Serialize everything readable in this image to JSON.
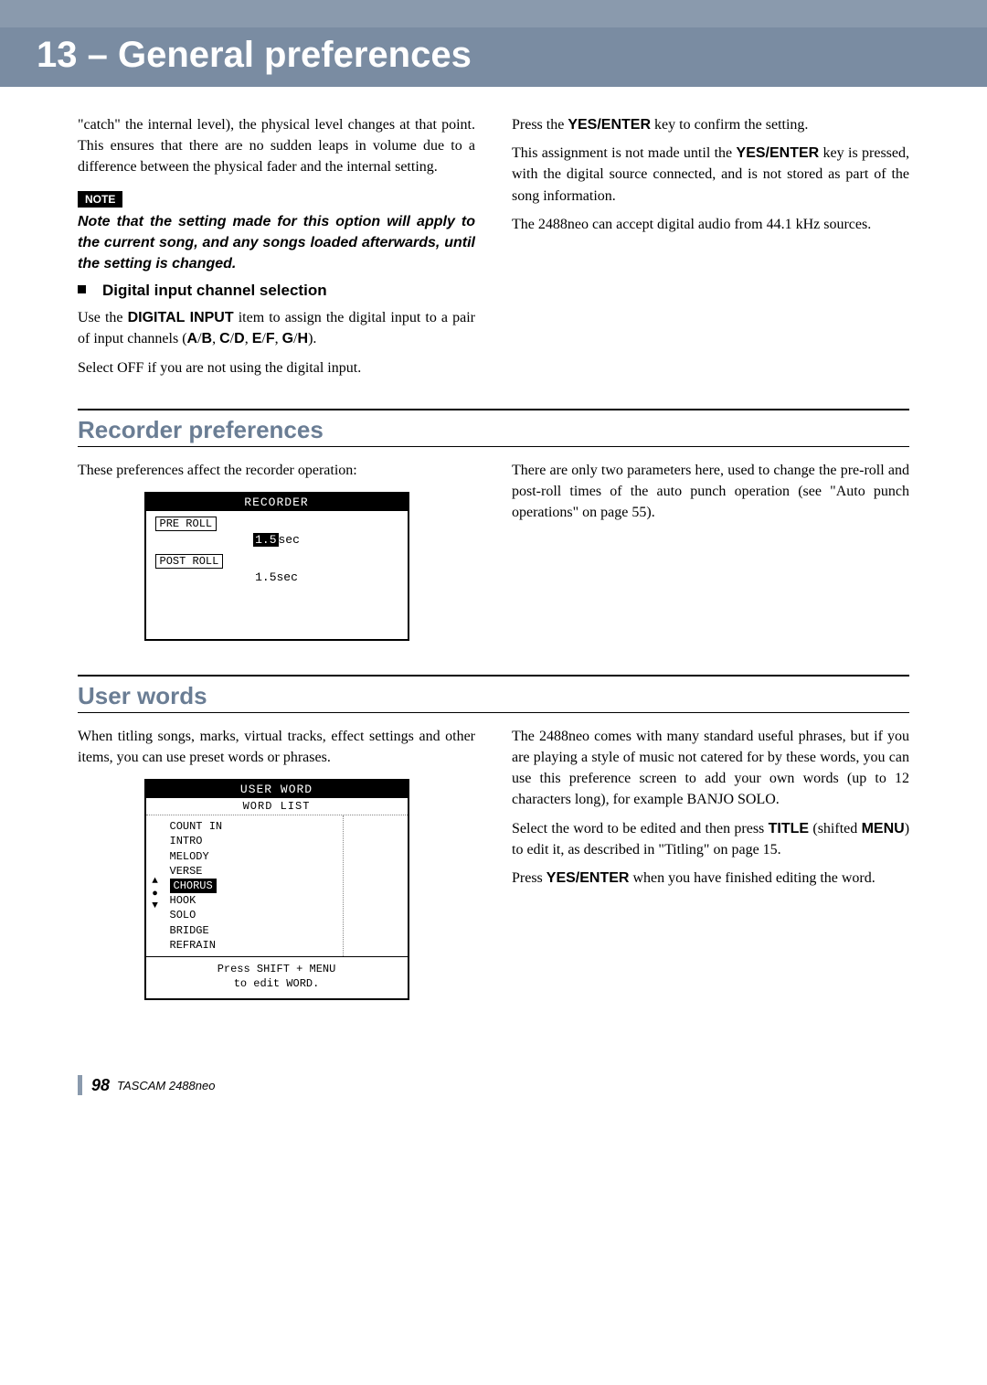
{
  "header": {
    "chapter": "13 – General preferences"
  },
  "intro": {
    "left_p1": "\"catch\" the internal level), the physical level changes at that point. This ensures that there are no sudden leaps in volume due to a difference between the physical fader and the internal setting.",
    "note_label": "NOTE",
    "note_text": "Note that the setting made for this option will apply to the current song, and any songs loaded afterwards, until the setting is changed.",
    "sub_heading": "Digital input channel selection",
    "left_p2a": "Use the ",
    "left_p2_bold1": "DIGITAL INPUT",
    "left_p2b": " item to assign the digital input to a pair of input channels (",
    "left_p2_bold2": "A",
    "left_p2c": "/",
    "left_p2_bold3": "B",
    "left_p2d": ", ",
    "left_p2_bold4": "C",
    "left_p2e": "/",
    "left_p2_bold5": "D",
    "left_p2f": ", ",
    "left_p2_bold6": "E",
    "left_p2g": "/",
    "left_p2_bold7": "F",
    "left_p2h": ", ",
    "left_p2_bold8": "G",
    "left_p2i": "/",
    "left_p2_bold9": "H",
    "left_p2j": ").",
    "left_p3": "Select OFF if you are not using the digital input.",
    "right_p1a": "Press the ",
    "right_p1_bold": "YES/ENTER",
    "right_p1b": " key to confirm the setting.",
    "right_p2a": "This assignment is not made until the ",
    "right_p2_bold": "YES/ENTER",
    "right_p2b": " key is pressed, with the digital source connected, and is not stored as part of the song information.",
    "right_p3": "The 2488neo can accept digital audio from 44.1 kHz sources."
  },
  "recorder": {
    "title": "Recorder preferences",
    "left_p1": "These preferences affect the recorder operation:",
    "right_p1": "There are only two parameters here, used to change the pre-roll and post-roll times of the auto punch operation (see \"Auto punch operations\" on page 55).",
    "lcd": {
      "title": "RECORDER",
      "pre_label": "PRE ROLL",
      "pre_hl": "1.5",
      "pre_unit": "sec",
      "post_label": "POST ROLL",
      "post_val": "1.5sec"
    }
  },
  "userwords": {
    "title": "User words",
    "left_p1": "When titling songs, marks, virtual tracks, effect settings and other items, you can use preset words or phrases.",
    "right_p1": "The 2488neo comes with many standard useful phrases, but if you are playing a style of music not catered for by these words, you can use this preference screen to add your own words (up to 12 characters long), for example BANJO SOLO.",
    "right_p2a": "Select the word to be edited and then press ",
    "right_p2_bold1": "TITLE",
    "right_p2b": " (shifted ",
    "right_p2_bold2": "MENU",
    "right_p2c": ") to edit it, as described in \"Titling\" on page 15.",
    "right_p3a": "Press ",
    "right_p3_bold": "YES/ENTER",
    "right_p3b": " when you have finished editing the word.",
    "lcd": {
      "title": "USER WORD",
      "subtitle": "WORD LIST",
      "items": [
        "COUNT IN",
        "INTRO",
        "MELODY",
        "VERSE",
        "CHORUS",
        "HOOK",
        "SOLO",
        "BRIDGE",
        "REFRAIN"
      ],
      "selected_index": 4,
      "hint1": "Press SHIFT + MENU",
      "hint2": "to edit WORD."
    }
  },
  "footer": {
    "page": "98",
    "text": "TASCAM  2488neo"
  }
}
